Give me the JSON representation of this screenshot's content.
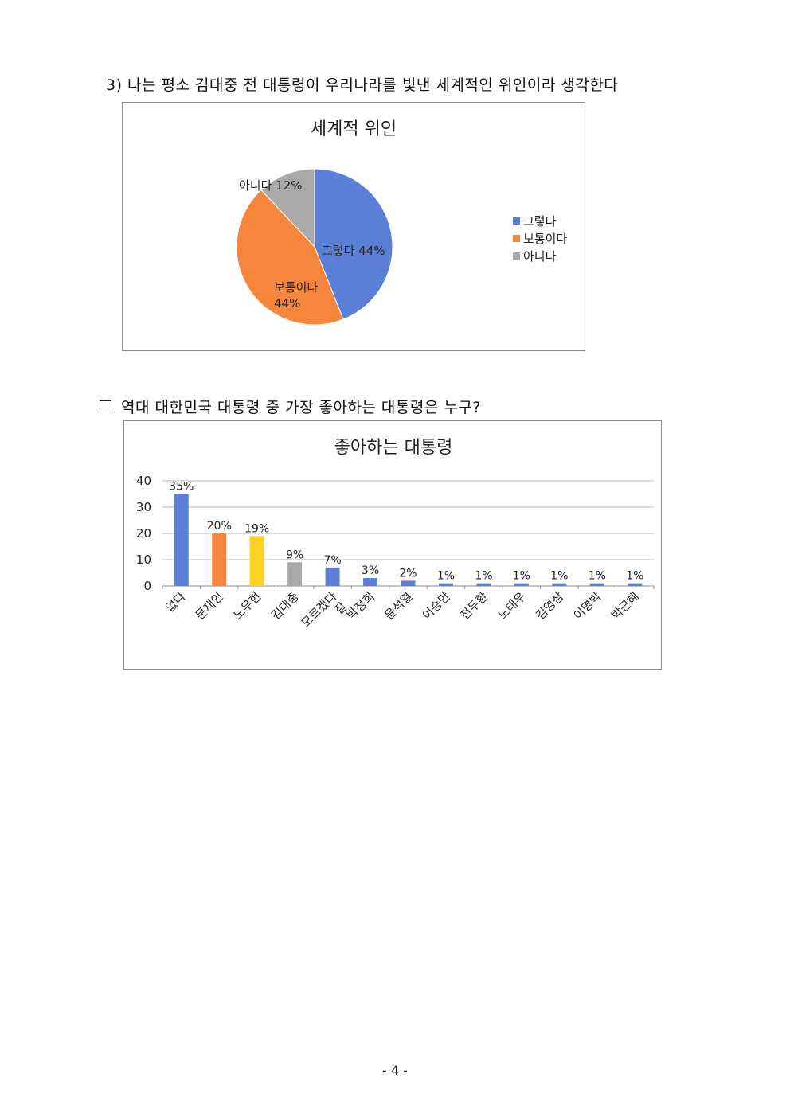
{
  "q3": {
    "heading": "3) 나는 평소 김대중 전 대통령이 우리나라를 빛낸 세계적인 위인이라 생각한다"
  },
  "q4": {
    "heading": "역대 대한민국 대통령 중 가장 좋아하는 대통령은 누구?"
  },
  "page_number": "- 4 -",
  "chart_data": [
    {
      "type": "pie",
      "title": "세계적 위인",
      "categories": [
        "그렇다",
        "보통이다",
        "아니다"
      ],
      "values": [
        44,
        44,
        12
      ],
      "data_labels": [
        "그렇다 44%",
        "보통이다 44%",
        "아니다 12%"
      ],
      "colors": [
        "#5b7fd6",
        "#f5863b",
        "#a9a9a9"
      ],
      "legend": "right"
    },
    {
      "type": "bar",
      "title": "좋아하는 대통령",
      "categories": [
        "없다",
        "문재인",
        "노무현",
        "김대중",
        "잘 모르겠다",
        "박정희",
        "윤석열",
        "이승만",
        "전두환",
        "노태우",
        "김영삼",
        "이명박",
        "박근혜"
      ],
      "values": [
        35,
        20,
        19,
        9,
        7,
        3,
        2,
        1,
        1,
        1,
        1,
        1,
        1
      ],
      "data_labels": [
        "35%",
        "20%",
        "19%",
        "9%",
        "7%",
        "3%",
        "2%",
        "1%",
        "1%",
        "1%",
        "1%",
        "1%",
        "1%"
      ],
      "colors": [
        "#5b7fd6",
        "#f5863b",
        "#ffd21f",
        "#a9a9a9",
        "#5b7fd6",
        "#5b7fd6",
        "#5b7fd6",
        "#5b7fd6",
        "#5b7fd6",
        "#5b7fd6",
        "#5b7fd6",
        "#5b7fd6",
        "#5b7fd6"
      ],
      "ylim": [
        0,
        40
      ],
      "yticks": [
        0,
        10,
        20,
        30,
        40
      ],
      "grid": true,
      "legend": "none"
    }
  ]
}
